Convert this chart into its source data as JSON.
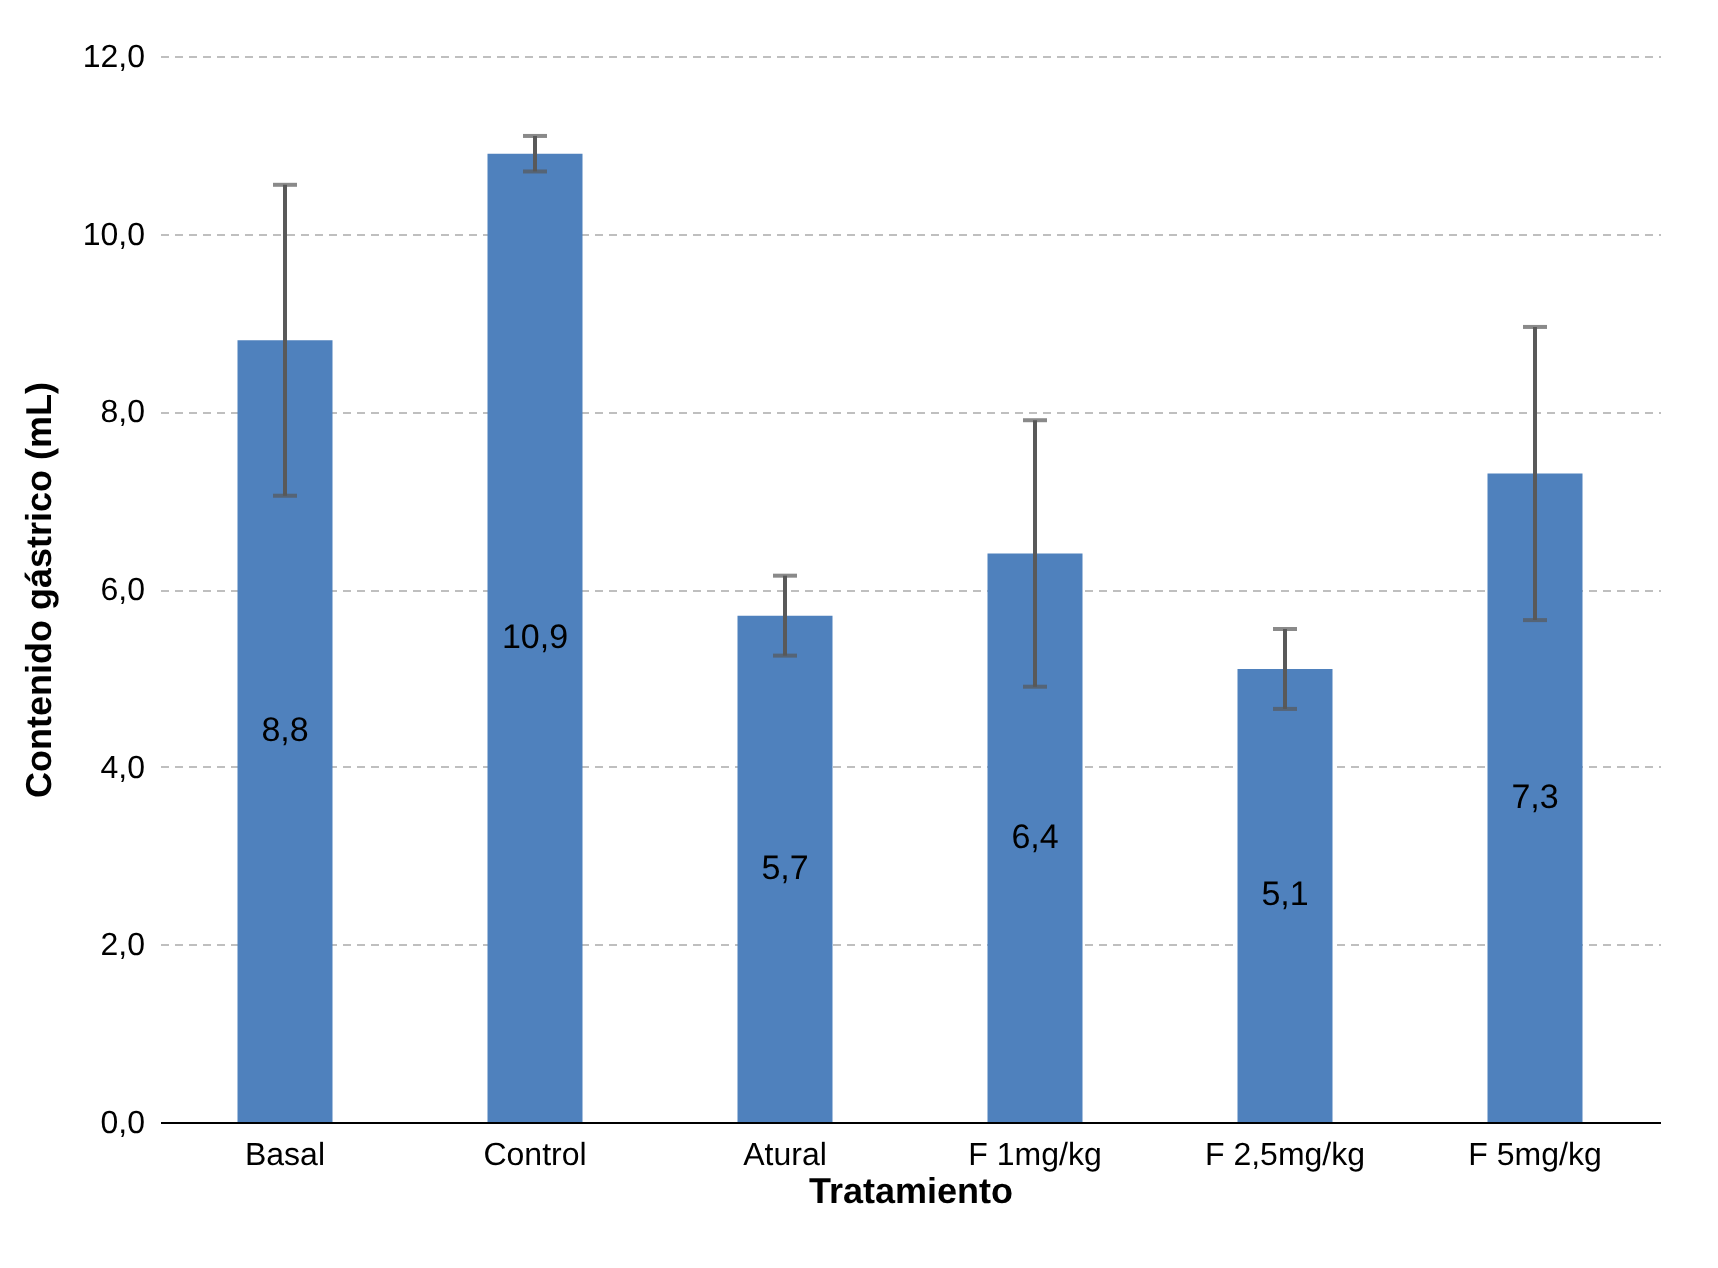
{
  "chart_data": {
    "type": "bar",
    "xlabel": "Tratamiento",
    "ylabel": "Contenido gástrico (mL)",
    "categories": [
      "Basal",
      "Control",
      "Atural",
      "F 1mg/kg",
      "F 2,5mg/kg",
      "F 5mg/kg"
    ],
    "values": [
      8.8,
      10.9,
      5.7,
      6.4,
      5.1,
      7.3
    ],
    "errors": [
      1.75,
      0.2,
      0.45,
      1.5,
      0.45,
      1.65
    ],
    "value_labels": [
      "8,8",
      "10,9",
      "5,7",
      "6,4",
      "5,1",
      "7,3"
    ],
    "color": "#4f81bd",
    "ylim": [
      0,
      12
    ],
    "yticks": [
      {
        "value": 0,
        "label": "0,0"
      },
      {
        "value": 2,
        "label": "2,0"
      },
      {
        "value": 4,
        "label": "4,0"
      },
      {
        "value": 6,
        "label": "6,0"
      },
      {
        "value": 8,
        "label": "8,0"
      },
      {
        "value": 10,
        "label": "10,0"
      },
      {
        "value": 12,
        "label": "12,0"
      }
    ],
    "grid": "y"
  }
}
